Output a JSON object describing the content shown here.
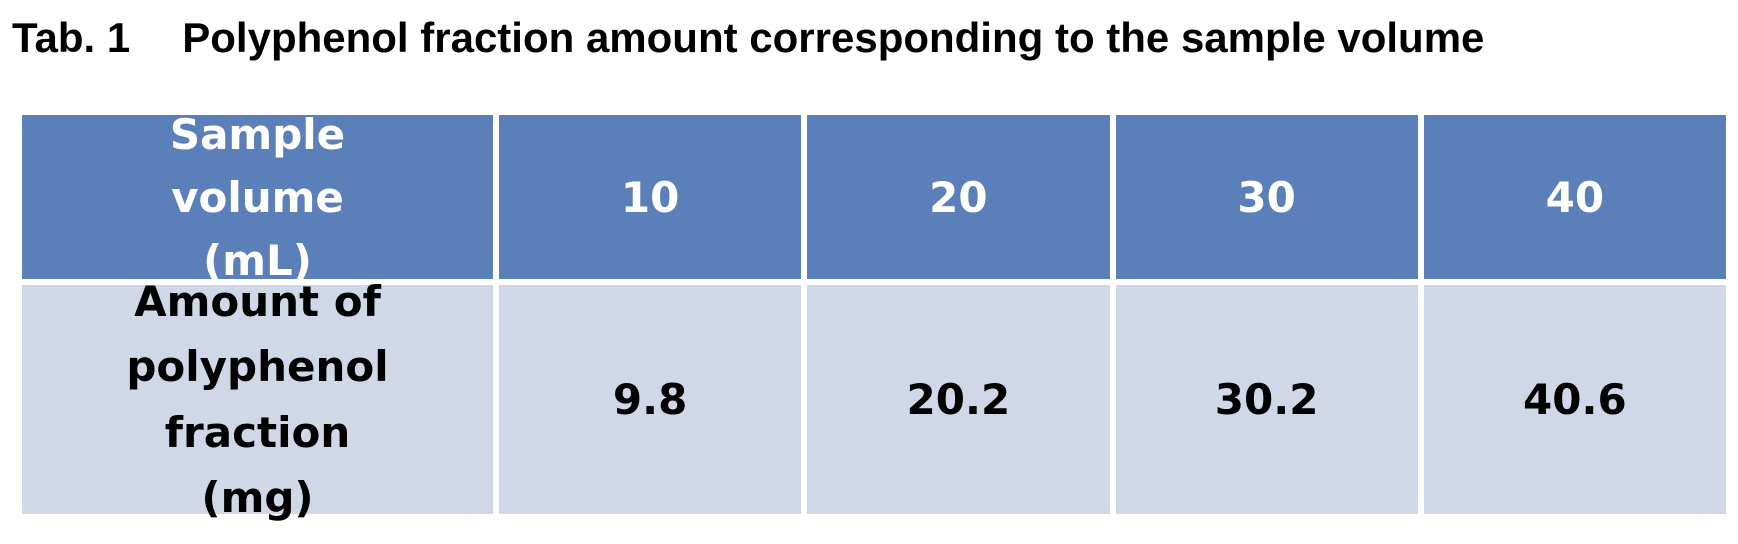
{
  "title": {
    "label": "Tab. 1",
    "text": "Polyphenol fraction amount corresponding to the sample volume"
  },
  "table": {
    "header": [
      "Sample volume (mL)",
      "10",
      "20",
      "30",
      "40"
    ],
    "rows": [
      [
        "Amount of polyphenol fraction (mg)",
        "9.8",
        "20.2",
        "30.2",
        "40.6"
      ]
    ]
  }
}
